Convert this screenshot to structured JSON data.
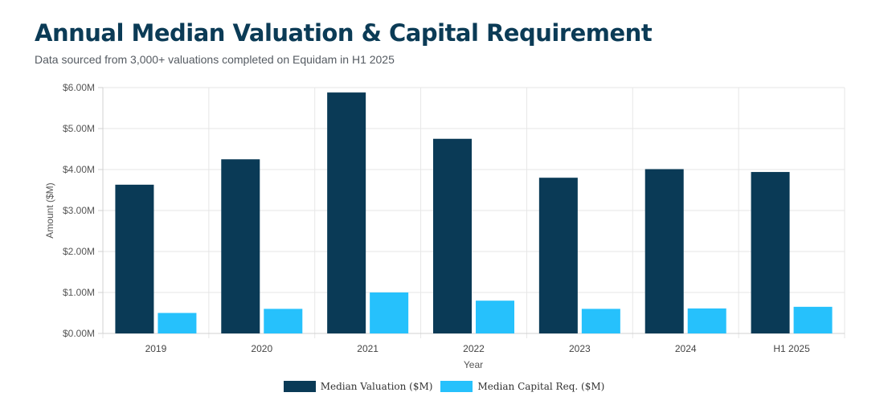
{
  "header": {
    "title": "Annual Median Valuation & Capital Requirement",
    "subtitle": "Data sourced from 3,000+ valuations completed on Equidam in H1 2025"
  },
  "chart_data": {
    "type": "bar",
    "categories": [
      "2019",
      "2020",
      "2021",
      "2022",
      "2023",
      "2024",
      "H1 2025"
    ],
    "series": [
      {
        "name": "Median Valuation ($M)",
        "color": "#0a3a56",
        "values": [
          3.63,
          4.25,
          5.88,
          4.75,
          3.8,
          4.01,
          3.94
        ]
      },
      {
        "name": "Median Capital Req. ($M)",
        "color": "#26c1fc",
        "values": [
          0.5,
          0.6,
          1.0,
          0.8,
          0.6,
          0.61,
          0.65
        ]
      }
    ],
    "xlabel": "Year",
    "ylabel": "Amount ($M)",
    "ylim": [
      0,
      6
    ],
    "yticks": [
      "$0.00M",
      "$1.00M",
      "$2.00M",
      "$3.00M",
      "$4.00M",
      "$5.00M",
      "$6.00M"
    ],
    "grid": true,
    "legend_position": "bottom"
  }
}
